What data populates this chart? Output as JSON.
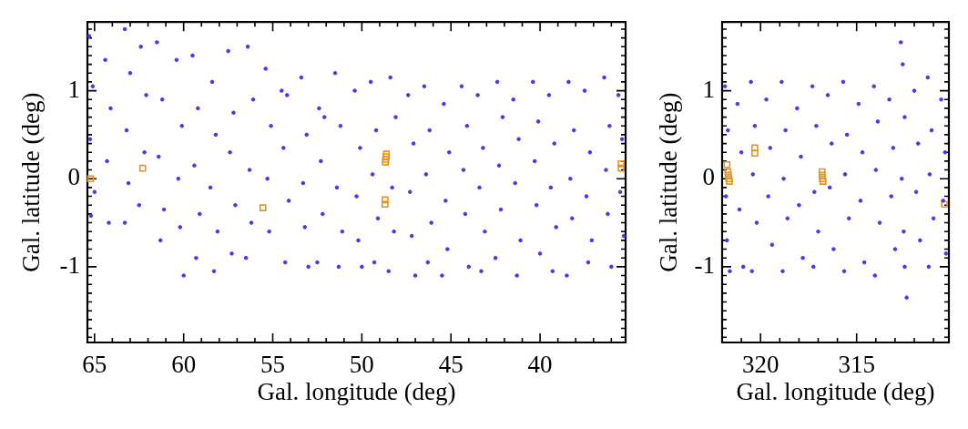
{
  "chart_data": [
    {
      "type": "scatter",
      "xlabel": "Gal. longitude (deg)",
      "ylabel": "Gal. latitude (deg)",
      "xlim": [
        65.4,
        35.2
      ],
      "ylim": [
        -1.86,
        1.78
      ],
      "xticks": [
        65,
        {
          "value": 64,
          "label": null
        },
        {
          "value": 63,
          "label": null
        },
        {
          "value": 62,
          "label": null
        },
        {
          "value": 61,
          "label": null
        },
        60,
        {
          "value": 59,
          "label": null
        },
        {
          "value": 58,
          "label": null
        },
        {
          "value": 57,
          "label": null
        },
        {
          "value": 56,
          "label": null
        },
        55,
        {
          "value": 54,
          "label": null
        },
        {
          "value": 53,
          "label": null
        },
        {
          "value": 52,
          "label": null
        },
        {
          "value": 51,
          "label": null
        },
        50,
        {
          "value": 49,
          "label": null
        },
        {
          "value": 48,
          "label": null
        },
        {
          "value": 47,
          "label": null
        },
        {
          "value": 46,
          "label": null
        },
        45,
        {
          "value": 44,
          "label": null
        },
        {
          "value": 43,
          "label": null
        },
        {
          "value": 42,
          "label": null
        },
        {
          "value": 41,
          "label": null
        },
        40,
        {
          "value": 39,
          "label": null
        },
        {
          "value": 38,
          "label": null
        },
        {
          "value": 37,
          "label": null
        },
        {
          "value": 36,
          "label": null
        }
      ],
      "yticks": [
        {
          "value": -1.8,
          "label": null
        },
        {
          "value": -1.7,
          "label": null
        },
        {
          "value": -1.6,
          "label": null
        },
        {
          "value": -1.5,
          "label": null
        },
        {
          "value": -1.4,
          "label": null
        },
        {
          "value": -1.3,
          "label": null
        },
        {
          "value": -1.2,
          "label": null
        },
        {
          "value": -1.1,
          "label": null
        },
        -1,
        {
          "value": -0.9,
          "label": null
        },
        {
          "value": -0.8,
          "label": null
        },
        {
          "value": -0.7,
          "label": null
        },
        {
          "value": -0.6,
          "label": null
        },
        {
          "value": -0.5,
          "label": null
        },
        {
          "value": -0.4,
          "label": null
        },
        {
          "value": -0.3,
          "label": null
        },
        {
          "value": -0.2,
          "label": null
        },
        {
          "value": -0.1,
          "label": null
        },
        0,
        {
          "value": 0.1,
          "label": null
        },
        {
          "value": 0.2,
          "label": null
        },
        {
          "value": 0.3,
          "label": null
        },
        {
          "value": 0.4,
          "label": null
        },
        {
          "value": 0.5,
          "label": null
        },
        {
          "value": 0.6,
          "label": null
        },
        {
          "value": 0.7,
          "label": null
        },
        {
          "value": 0.8,
          "label": null
        },
        {
          "value": 0.9,
          "label": null
        },
        1,
        {
          "value": 1.1,
          "label": null
        },
        {
          "value": 1.2,
          "label": null
        },
        {
          "value": 1.3,
          "label": null
        },
        {
          "value": 1.4,
          "label": null
        },
        {
          "value": 1.5,
          "label": null
        },
        {
          "value": 1.6,
          "label": null
        },
        {
          "value": 1.7,
          "label": null
        }
      ],
      "series": [
        {
          "marker": "circle",
          "color": "#5b2ee8",
          "x": [
            65.3,
            65.1,
            65.25,
            65.0,
            65.2,
            64.4,
            64.1,
            64.3,
            64.2,
            63.3,
            63.0,
            63.2,
            63.1,
            63.3,
            62.4,
            62.1,
            62.2,
            62.5,
            61.5,
            61.2,
            61.4,
            61.1,
            61.3,
            60.4,
            60.1,
            60.3,
            60.2,
            60.0,
            59.5,
            59.2,
            59.4,
            59.1,
            59.3,
            58.4,
            58.2,
            58.5,
            58.1,
            58.3,
            57.5,
            57.2,
            57.4,
            57.1,
            57.3,
            56.4,
            56.1,
            56.3,
            56.2,
            56.5,
            55.4,
            55.1,
            55.3,
            55.2,
            54.5,
            54.2,
            54.4,
            54.1,
            54.3,
            53.4,
            53.1,
            53.3,
            53.2,
            53.0,
            52.4,
            52.1,
            52.3,
            52.2,
            52.5,
            51.5,
            51.2,
            51.4,
            51.1,
            51.3,
            50.4,
            50.1,
            50.3,
            50.2,
            50.0,
            49.5,
            49.2,
            49.4,
            49.1,
            49.3,
            48.4,
            48.1,
            48.3,
            48.2,
            48.5,
            47.4,
            47.1,
            47.3,
            47.2,
            47.0,
            46.5,
            46.2,
            46.4,
            46.1,
            46.3,
            45.4,
            45.1,
            45.3,
            45.2,
            45.5,
            44.4,
            44.1,
            44.3,
            44.2,
            44.0,
            43.5,
            43.2,
            43.4,
            43.1,
            43.3,
            42.4,
            42.1,
            42.3,
            42.2,
            42.5,
            41.5,
            41.2,
            41.4,
            41.1,
            41.3,
            40.4,
            40.1,
            40.3,
            40.2,
            40.0,
            39.5,
            39.2,
            39.4,
            39.1,
            39.3,
            38.4,
            38.1,
            38.3,
            38.2,
            38.5,
            37.5,
            37.2,
            37.4,
            37.1,
            37.3,
            36.4,
            36.1,
            36.3,
            36.2,
            36.0,
            35.6,
            35.4,
            35.5,
            35.3
          ],
          "values": [
            1.62,
            1.05,
            0.45,
            -0.15,
            -0.42,
            1.35,
            0.8,
            0.2,
            -0.5,
            1.7,
            1.2,
            0.55,
            -0.05,
            -0.5,
            1.5,
            0.95,
            0.3,
            -0.3,
            1.55,
            0.9,
            0.25,
            -0.35,
            -0.7,
            1.35,
            0.6,
            0.0,
            -0.55,
            -1.1,
            1.4,
            0.8,
            0.15,
            -0.4,
            -0.9,
            1.1,
            0.5,
            -0.1,
            -0.6,
            -1.05,
            1.45,
            0.75,
            0.3,
            -0.3,
            -0.85,
            1.5,
            0.9,
            0.1,
            -0.5,
            -0.9,
            1.25,
            0.6,
            0.0,
            -0.6,
            1.0,
            0.95,
            0.35,
            -0.25,
            -0.95,
            1.15,
            0.5,
            -0.05,
            -0.55,
            -1.0,
            0.8,
            0.7,
            0.2,
            -0.4,
            -0.95,
            1.2,
            0.6,
            -0.1,
            -0.6,
            -1.0,
            1.0,
            0.35,
            -0.2,
            -0.7,
            -1.0,
            1.1,
            0.55,
            0.05,
            -0.45,
            -0.95,
            1.15,
            0.7,
            -0.1,
            -0.6,
            -1.05,
            0.95,
            0.4,
            -0.15,
            -0.65,
            -1.1,
            1.05,
            0.55,
            0.05,
            -0.5,
            -0.95,
            0.85,
            0.3,
            -0.25,
            -0.8,
            -1.1,
            1.05,
            0.6,
            0.1,
            -0.4,
            -1.0,
            0.95,
            0.35,
            -0.1,
            -0.6,
            -1.05,
            1.1,
            0.7,
            0.15,
            -0.35,
            -0.9,
            0.9,
            0.45,
            -0.05,
            -0.7,
            -1.1,
            1.1,
            0.65,
            0.2,
            -0.3,
            -0.85,
            0.95,
            0.4,
            -0.1,
            -0.55,
            -1.05,
            1.1,
            0.55,
            0.0,
            -0.45,
            -1.1,
            1.0,
            0.3,
            -0.2,
            -0.7,
            -0.95,
            1.15,
            0.6,
            0.1,
            -0.4,
            -1.0,
            0.95,
            0.45,
            -0.15,
            -0.65
          ]
        },
        {
          "marker": "square",
          "color": "#e8941a",
          "x": [
            65.22,
            62.3,
            55.55,
            48.68,
            48.66,
            48.64,
            48.62,
            48.7,
            48.7,
            35.45,
            35.45
          ],
          "values": [
            0.0,
            0.12,
            -0.33,
            0.19,
            0.22,
            0.25,
            0.28,
            -0.24,
            -0.29,
            0.17,
            0.12
          ]
        }
      ]
    },
    {
      "type": "scatter",
      "xlabel": "Gal. longitude (deg)",
      "ylabel": "Gal. latitude (deg)",
      "xlim": [
        322.0,
        310.2
      ],
      "ylim": [
        -1.86,
        1.78
      ],
      "xticks": [
        {
          "value": 321,
          "label": null
        },
        320,
        {
          "value": 319,
          "label": null
        },
        {
          "value": 318,
          "label": null
        },
        {
          "value": 317,
          "label": null
        },
        {
          "value": 316,
          "label": null
        },
        315,
        {
          "value": 314,
          "label": null
        },
        {
          "value": 313,
          "label": null
        },
        {
          "value": 312,
          "label": null
        },
        {
          "value": 311,
          "label": null
        }
      ],
      "yticks": [
        {
          "value": -1.8,
          "label": null
        },
        {
          "value": -1.7,
          "label": null
        },
        {
          "value": -1.6,
          "label": null
        },
        {
          "value": -1.5,
          "label": null
        },
        {
          "value": -1.4,
          "label": null
        },
        {
          "value": -1.3,
          "label": null
        },
        {
          "value": -1.2,
          "label": null
        },
        {
          "value": -1.1,
          "label": null
        },
        -1,
        {
          "value": -0.9,
          "label": null
        },
        {
          "value": -0.8,
          "label": null
        },
        {
          "value": -0.7,
          "label": null
        },
        {
          "value": -0.6,
          "label": null
        },
        {
          "value": -0.5,
          "label": null
        },
        {
          "value": -0.4,
          "label": null
        },
        {
          "value": -0.3,
          "label": null
        },
        {
          "value": -0.2,
          "label": null
        },
        {
          "value": -0.1,
          "label": null
        },
        0,
        {
          "value": 0.1,
          "label": null
        },
        {
          "value": 0.2,
          "label": null
        },
        {
          "value": 0.3,
          "label": null
        },
        {
          "value": 0.4,
          "label": null
        },
        {
          "value": 0.5,
          "label": null
        },
        {
          "value": 0.6,
          "label": null
        },
        {
          "value": 0.7,
          "label": null
        },
        {
          "value": 0.8,
          "label": null
        },
        {
          "value": 0.9,
          "label": null
        },
        1,
        {
          "value": 1.1,
          "label": null
        },
        {
          "value": 1.2,
          "label": null
        },
        {
          "value": 1.3,
          "label": null
        },
        {
          "value": 1.4,
          "label": null
        },
        {
          "value": 1.5,
          "label": null
        },
        {
          "value": 1.6,
          "label": null
        },
        {
          "value": 1.7,
          "label": null
        }
      ],
      "series": [
        {
          "marker": "circle",
          "color": "#5b2ee8",
          "x": [
            321.85,
            321.7,
            321.8,
            321.75,
            321.6,
            321.2,
            321.0,
            321.1,
            320.9,
            320.5,
            320.3,
            320.4,
            320.2,
            320.45,
            319.7,
            319.5,
            319.6,
            319.4,
            318.9,
            318.7,
            318.8,
            318.6,
            318.85,
            318.1,
            317.9,
            318.0,
            317.8,
            317.3,
            317.1,
            317.2,
            317.0,
            317.25,
            316.5,
            316.3,
            316.4,
            316.2,
            315.7,
            315.5,
            315.6,
            315.4,
            315.65,
            314.9,
            314.7,
            314.8,
            314.6,
            314.1,
            313.9,
            314.0,
            313.8,
            314.05,
            313.3,
            313.1,
            313.2,
            313.0,
            312.7,
            312.6,
            312.5,
            312.65,
            312.55,
            312.5,
            312.4,
            312.0,
            311.8,
            311.9,
            311.7,
            311.3,
            311.1,
            311.2,
            311.0,
            311.25,
            310.6,
            310.4,
            310.5,
            310.35
          ],
          "values": [
            1.05,
            0.55,
            -0.2,
            -0.7,
            -1.05,
            0.85,
            0.3,
            -0.35,
            -1.0,
            1.1,
            0.6,
            0.05,
            -0.5,
            -1.05,
            0.9,
            0.35,
            -0.2,
            -0.75,
            1.1,
            0.55,
            0.0,
            -0.45,
            -1.05,
            0.8,
            0.25,
            -0.3,
            -0.9,
            1.05,
            0.6,
            -0.15,
            -0.6,
            -1.0,
            0.95,
            0.4,
            -0.1,
            -0.8,
            1.1,
            0.5,
            0.05,
            -0.45,
            -1.05,
            0.85,
            0.3,
            -0.25,
            -0.95,
            1.05,
            0.65,
            0.1,
            -0.5,
            -1.1,
            0.9,
            0.35,
            -0.2,
            -0.8,
            1.55,
            1.3,
            0.7,
            0.0,
            -0.6,
            -1.0,
            -1.35,
            1.0,
            0.4,
            -0.15,
            -0.7,
            1.15,
            0.55,
            0.05,
            -0.45,
            -1.0,
            0.9,
            0.3,
            -0.25,
            -0.85
          ]
        },
        {
          "marker": "square",
          "color": "#e8941a",
          "x": [
            321.75,
            321.7,
            321.68,
            321.65,
            321.62,
            320.3,
            320.3,
            316.8,
            316.8,
            316.78,
            316.75,
            310.43
          ],
          "values": [
            0.16,
            0.08,
            0.04,
            0.0,
            -0.03,
            0.35,
            0.29,
            0.08,
            0.04,
            0.0,
            -0.03,
            -0.29
          ]
        }
      ]
    }
  ]
}
